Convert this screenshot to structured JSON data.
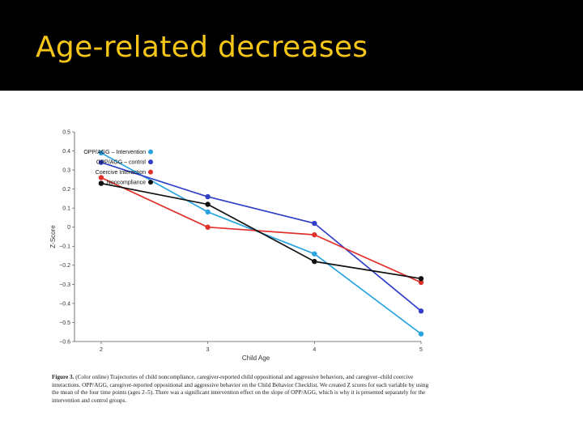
{
  "slide": {
    "title": "Age-related decreases",
    "title_color": "#f5c518",
    "band_color": "#000000"
  },
  "caption": {
    "label": "Figure 3.",
    "text": "(Color online) Trajectories of child noncompliance, caregiver-reported child oppositional and aggressive behaviors, and caregiver–child coercive interactions. OPP/AGG, caregiver-reported oppositional and aggressive behavior on the Child Behavior Checklist. We created Z scores for each variable by using the mean of the four time points (ages 2–5). There was a significant intervention effect on the slope of OPP/AGG, which is why it is presented separately for the intervention and control groups."
  },
  "chart_data": {
    "type": "line",
    "title": "",
    "xlabel": "Child Age",
    "ylabel": "Z-Score",
    "x": [
      2,
      3,
      4,
      5
    ],
    "x_ticks": [
      "2",
      "3",
      "4",
      "5"
    ],
    "ylim": [
      -0.6,
      0.5
    ],
    "y_ticks": [
      "0.5",
      "0.4",
      "0.3",
      "0.2",
      "0.1",
      "0",
      "−0.1",
      "−0.2",
      "−0.3",
      "−0.4",
      "−0.5",
      "−0.6"
    ],
    "grid": false,
    "legend_position": "top-left",
    "series": [
      {
        "name": "OPP/AGG – Intervention",
        "color": "#2aa3e0",
        "values": [
          0.39,
          0.08,
          -0.14,
          -0.56
        ]
      },
      {
        "name": "OPP/AGG – control",
        "color": "#2f3fc8",
        "values": [
          0.34,
          0.16,
          0.02,
          -0.44
        ]
      },
      {
        "name": "Coercive Interaction",
        "color": "#e0302a",
        "values": [
          0.26,
          0.0,
          -0.04,
          -0.29
        ]
      },
      {
        "name": "Noncompliance",
        "color": "#111111",
        "values": [
          0.23,
          0.12,
          -0.18,
          -0.27
        ]
      }
    ]
  }
}
